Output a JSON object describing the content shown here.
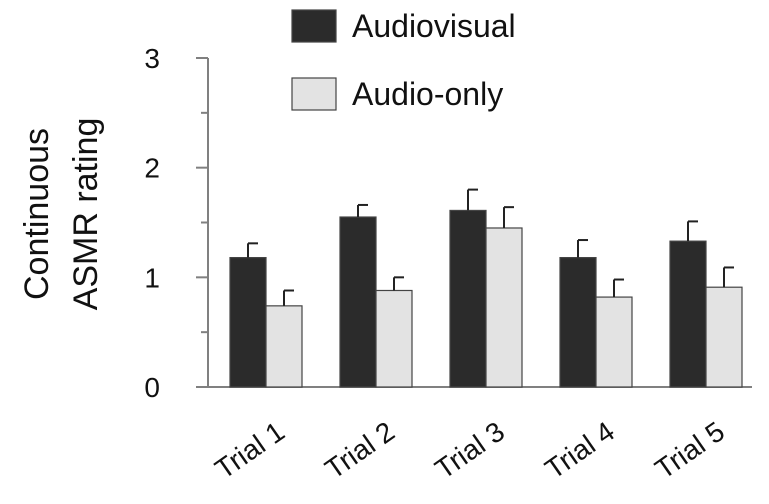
{
  "chart_data": {
    "type": "bar",
    "title": "",
    "xlabel": "",
    "ylabel": [
      "Continuous",
      "ASMR rating"
    ],
    "ylim": [
      0,
      3
    ],
    "yticks": [
      0,
      1,
      2,
      3
    ],
    "categories": [
      "Trial 1",
      "Trial 2",
      "Trial 3",
      "Trial 4",
      "Trial 5"
    ],
    "series": [
      {
        "name": "Audiovisual",
        "color": "#2b2b2b",
        "values": [
          1.18,
          1.55,
          1.61,
          1.18,
          1.33
        ],
        "errors": [
          0.13,
          0.11,
          0.19,
          0.16,
          0.18
        ]
      },
      {
        "name": "Audio-only",
        "color": "#e3e3e3",
        "values": [
          0.74,
          0.88,
          1.45,
          0.82,
          0.91
        ],
        "errors": [
          0.14,
          0.12,
          0.19,
          0.16,
          0.18
        ]
      }
    ],
    "legend_position": "top",
    "grid": false
  }
}
